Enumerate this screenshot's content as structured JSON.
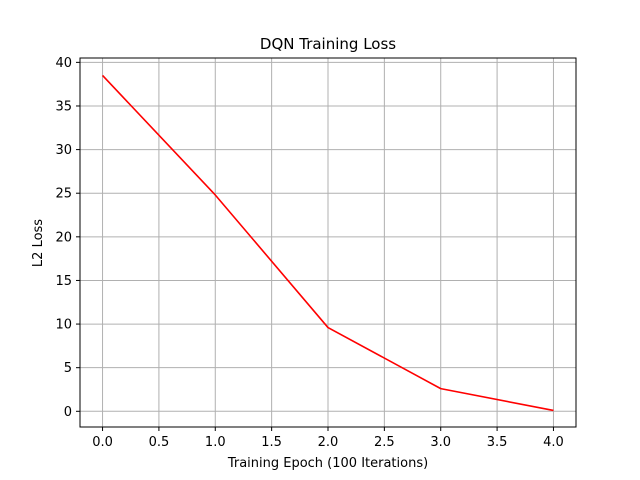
{
  "chart_data": {
    "type": "line",
    "title": "DQN Training Loss",
    "xlabel": "Training Epoch (100 Iterations)",
    "ylabel": "L2 Loss",
    "xlim": [
      -0.2,
      4.2
    ],
    "ylim": [
      -1.8,
      40.5
    ],
    "xticks": [
      "0.0",
      "0.5",
      "1.0",
      "1.5",
      "2.0",
      "2.5",
      "3.0",
      "3.5",
      "4.0"
    ],
    "yticks": [
      "0",
      "5",
      "10",
      "15",
      "20",
      "25",
      "30",
      "35",
      "40"
    ],
    "grid": true,
    "series": [
      {
        "color": "#ff0000",
        "x": [
          0,
          1,
          2,
          3,
          4
        ],
        "y": [
          38.5,
          24.8,
          9.6,
          2.6,
          0.1
        ]
      }
    ]
  }
}
